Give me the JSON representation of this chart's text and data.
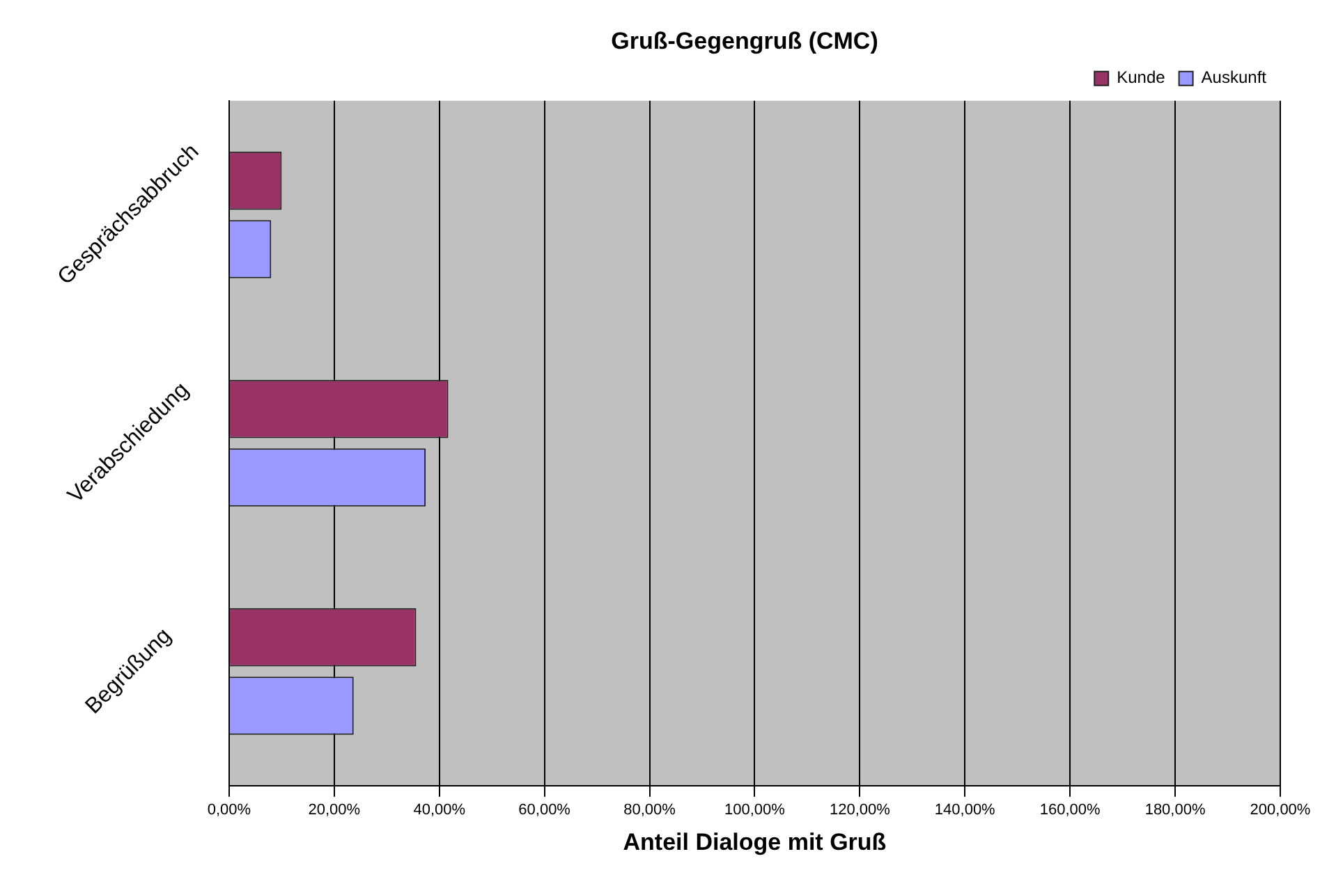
{
  "chart_data": {
    "type": "bar",
    "orientation": "horizontal",
    "title": "Gruß-Gegengruß (CMC)",
    "xlabel": "Anteil Dialoge mit Gruß",
    "categories": [
      "Gesprächsabbruch",
      "Verabschiedung",
      "Begrüßung"
    ],
    "series": [
      {
        "name": "Kunde",
        "color": "#993366",
        "values": [
          10,
          41.7,
          35.6
        ]
      },
      {
        "name": "Auskunft",
        "color": "#9999ff",
        "values": [
          8,
          37.4,
          23.7
        ]
      }
    ],
    "xlim": [
      0,
      200
    ],
    "xticks": [
      {
        "value": 0,
        "label": "0,00%"
      },
      {
        "value": 20,
        "label": "20,00%"
      },
      {
        "value": 40,
        "label": "40,00%"
      },
      {
        "value": 60,
        "label": "60,00%"
      },
      {
        "value": 80,
        "label": "80,00%"
      },
      {
        "value": 100,
        "label": "100,00%"
      },
      {
        "value": 120,
        "label": "120,00%"
      },
      {
        "value": 140,
        "label": "140,00%"
      },
      {
        "value": 160,
        "label": "160,00%"
      },
      {
        "value": 180,
        "label": "180,00%"
      },
      {
        "value": 200,
        "label": "200,00%"
      }
    ],
    "grid": "x",
    "legend": "top right"
  }
}
